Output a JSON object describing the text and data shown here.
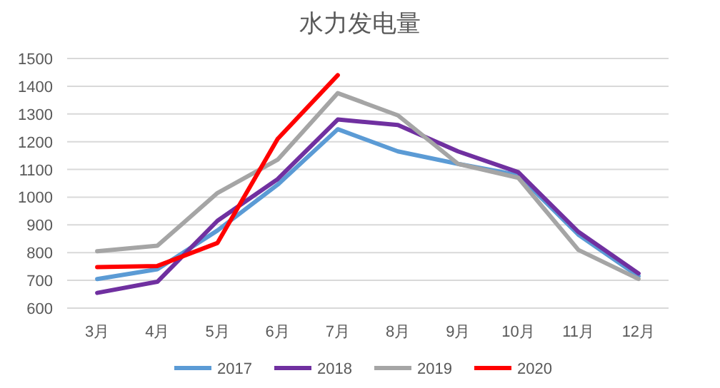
{
  "chart_data": {
    "type": "line",
    "title": "水力发电量",
    "categories": [
      "3月",
      "4月",
      "5月",
      "6月",
      "7月",
      "8月",
      "9月",
      "10月",
      "11月",
      "12月"
    ],
    "series": [
      {
        "name": "2017",
        "color": "#5b9bd5",
        "values": [
          705,
          740,
          880,
          1045,
          1245,
          1165,
          1120,
          1080,
          865,
          715
        ]
      },
      {
        "name": "2018",
        "color": "#7030a0",
        "values": [
          655,
          695,
          915,
          1065,
          1280,
          1260,
          1165,
          1090,
          875,
          725
        ]
      },
      {
        "name": "2019",
        "color": "#a5a5a5",
        "values": [
          805,
          825,
          1015,
          1135,
          1375,
          1295,
          1120,
          1070,
          810,
          705
        ]
      },
      {
        "name": "2020",
        "color": "#ff0000",
        "values": [
          748,
          752,
          835,
          1210,
          1440,
          null,
          null,
          null,
          null,
          null
        ]
      }
    ],
    "ylim": [
      600,
      1500
    ],
    "yticks": [
      600,
      700,
      800,
      900,
      1000,
      1100,
      1200,
      1300,
      1400,
      1500
    ],
    "grid": "y",
    "legend": "bottom",
    "line_style": "solid"
  }
}
